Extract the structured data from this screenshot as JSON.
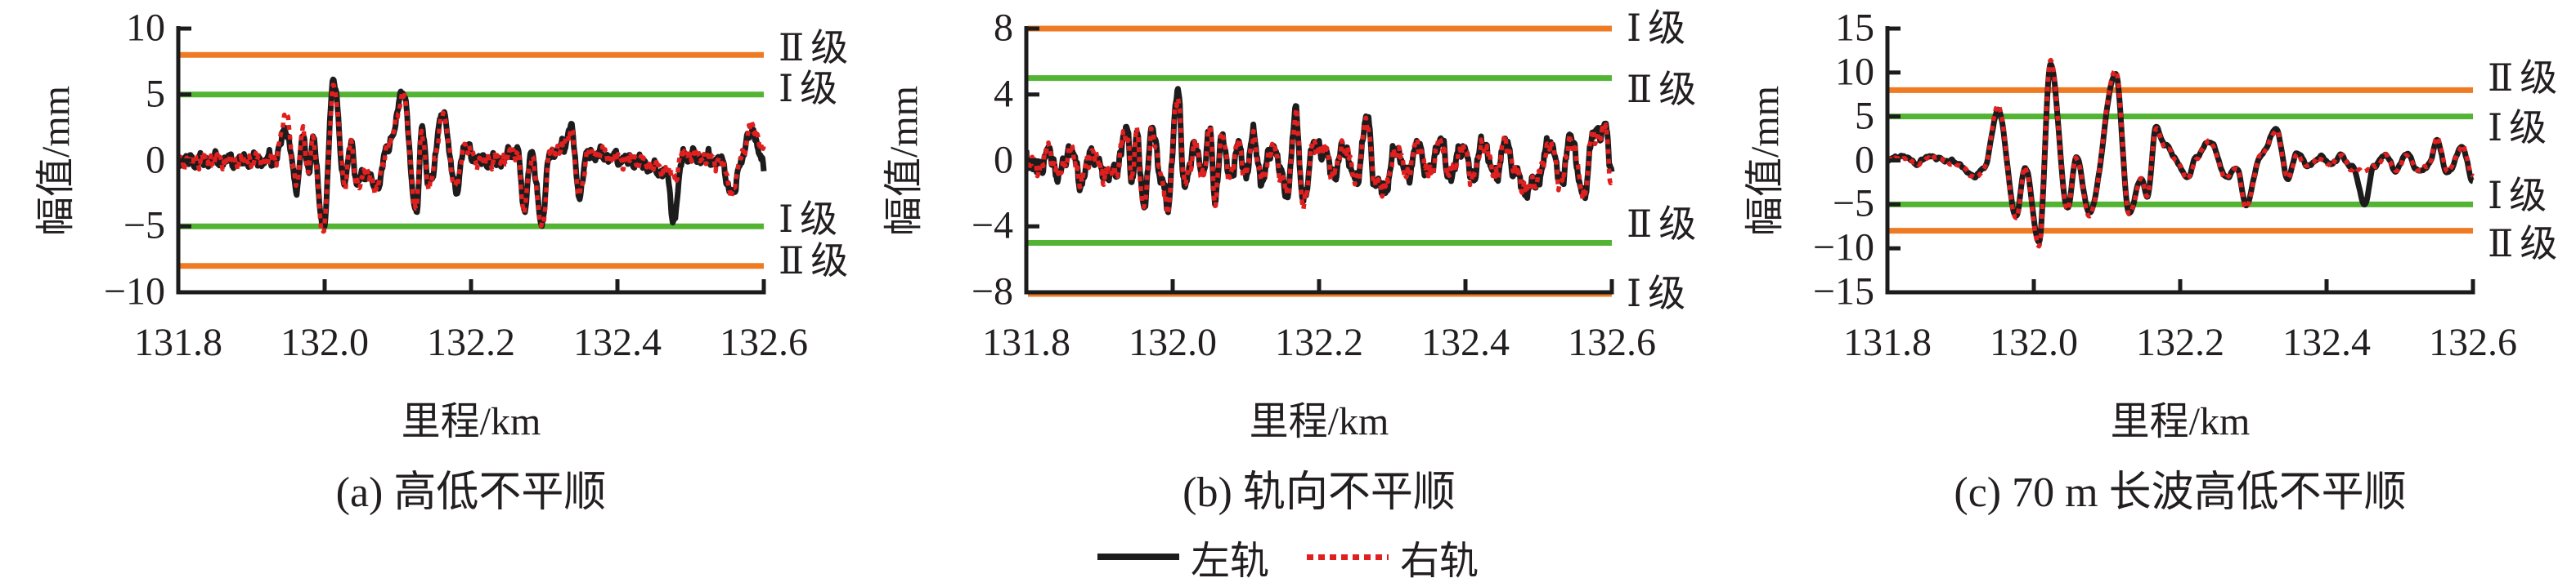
{
  "figure": {
    "background": "#ffffff",
    "text_color": "#231f20",
    "colors": {
      "orange_limit": "#ee7a23",
      "green_limit": "#53b434",
      "left_rail": "#1c1c1c",
      "right_rail": "#e01f1f"
    }
  },
  "legend": {
    "items": [
      {
        "label": "左轨",
        "style": "solid",
        "color": "#1c1c1c"
      },
      {
        "label": "右轨",
        "style": "dotted",
        "color": "#e01f1f"
      }
    ]
  },
  "chart_data": [
    {
      "id": "a",
      "type": "line",
      "caption": "(a) 高低不平顺",
      "xlabel": "里程/km",
      "ylabel": "幅值/mm",
      "xlim": [
        131.8,
        132.6
      ],
      "xticks": [
        "131.8",
        "132.0",
        "132.2",
        "132.4",
        "132.6"
      ],
      "ylim": [
        -10,
        10
      ],
      "yticks": [
        10,
        5,
        0,
        -5,
        -10
      ],
      "grid": false,
      "noise_freq_scale": 1.0,
      "limit_lines": [
        {
          "y": 8,
          "label": "Ⅱ级",
          "color": "orange"
        },
        {
          "y": 5,
          "label": "Ⅰ级",
          "color": "green"
        },
        {
          "y": -5,
          "label": "Ⅰ级",
          "color": "green"
        },
        {
          "y": -8,
          "label": "Ⅱ级",
          "color": "orange"
        }
      ],
      "series": [
        {
          "name": "左轨",
          "rail": "left",
          "color": "#1c1c1c",
          "style": "solid",
          "noise_amp": 0.6,
          "seed": 11,
          "keypoints": [
            131.8,
            0,
            131.93,
            0,
            131.948,
            2.3,
            131.962,
            -2.3,
            131.97,
            2.2,
            131.978,
            -1.2,
            131.984,
            1.8,
            131.998,
            -5.3,
            132.012,
            6.0,
            132.028,
            -1.8,
            132.036,
            1.4,
            132.044,
            -1.6,
            132.06,
            -1.0,
            132.07,
            -2.2,
            132.085,
            0.8,
            132.108,
            5.1,
            132.125,
            -4.2,
            132.133,
            2.6,
            132.142,
            -1.9,
            132.162,
            3.5,
            132.18,
            -2.4,
            132.19,
            1.0,
            132.21,
            0,
            132.24,
            0,
            132.264,
            0.8,
            132.272,
            -3.9,
            132.282,
            0.5,
            132.297,
            -4.6,
            132.308,
            0.6,
            132.325,
            0.9,
            132.337,
            2.6,
            132.347,
            -2.5,
            132.36,
            0.5,
            132.42,
            0,
            132.466,
            -0.9,
            132.477,
            -4.4,
            132.49,
            0.4,
            132.54,
            0,
            132.558,
            -2.6,
            132.57,
            0.3,
            132.584,
            2.3,
            132.6,
            -0.5
          ]
        },
        {
          "name": "右轨",
          "rail": "right",
          "color": "#e01f1f",
          "style": "dotted",
          "noise_amp": 0.6,
          "seed": 12,
          "keypoints": [
            131.8,
            0,
            131.93,
            0,
            131.948,
            3.3,
            131.962,
            -2.0,
            131.97,
            2.4,
            131.978,
            -1.0,
            131.984,
            1.6,
            131.998,
            -5.6,
            132.012,
            5.6,
            132.028,
            -1.6,
            132.036,
            1.2,
            132.044,
            -1.8,
            132.06,
            -0.8,
            132.07,
            -2.4,
            132.085,
            0.9,
            132.108,
            4.8,
            132.125,
            -3.8,
            132.133,
            2.4,
            132.142,
            -2.1,
            132.162,
            3.3,
            132.18,
            -2.2,
            132.19,
            1.1,
            132.21,
            0,
            132.24,
            0,
            132.264,
            0.7,
            132.272,
            -4.1,
            132.282,
            0.4,
            132.297,
            -5.0,
            132.308,
            0.5,
            132.325,
            1.0,
            132.337,
            2.4,
            132.347,
            -2.7,
            132.36,
            0.6,
            132.42,
            0,
            132.466,
            -0.7,
            132.477,
            -1.2,
            132.49,
            0.5,
            132.54,
            0,
            132.558,
            -2.4,
            132.57,
            0.5,
            132.584,
            2.6,
            132.6,
            0.8
          ]
        }
      ]
    },
    {
      "id": "b",
      "type": "line",
      "caption": "(b) 轨向不平顺",
      "xlabel": "里程/km",
      "ylabel": "幅值/mm",
      "xlim": [
        131.8,
        132.6
      ],
      "xticks": [
        "131.8",
        "132.0",
        "132.2",
        "132.4",
        "132.6"
      ],
      "ylim": [
        -8,
        8
      ],
      "yticks": [
        8,
        4,
        0,
        -4,
        -8
      ],
      "grid": false,
      "noise_freq_scale": 1.05,
      "limit_lines": [
        {
          "y": 8,
          "label": "Ⅰ级",
          "color": "orange"
        },
        {
          "y": 5,
          "label": "Ⅱ级",
          "color": "green"
        },
        {
          "y": -5,
          "label": "Ⅱ级",
          "color": "green"
        },
        {
          "y": -8,
          "label": "Ⅰ级",
          "color": "orange"
        }
      ],
      "series": [
        {
          "name": "左轨",
          "rail": "left",
          "color": "#1c1c1c",
          "style": "solid",
          "noise_amp": 0.62,
          "seed": 21,
          "keypoints": [
            131.8,
            0.2,
            131.815,
            -0.6,
            131.83,
            0.5,
            131.845,
            -0.9,
            131.86,
            0.7,
            131.875,
            -1.3,
            131.89,
            0.5,
            131.905,
            -0.7,
            131.92,
            -0.9,
            131.937,
            1.8,
            131.945,
            -1.0,
            131.951,
            1.5,
            131.96,
            -2.6,
            131.973,
            1.9,
            131.985,
            -1.3,
            131.993,
            -2.7,
            132.007,
            4.1,
            132.017,
            -1.6,
            132.031,
            1.2,
            132.04,
            -1.0,
            132.051,
            2.0,
            132.058,
            -2.8,
            132.066,
            1.6,
            132.078,
            -0.9,
            132.09,
            0.8,
            132.1,
            -0.7,
            132.111,
            1.5,
            132.122,
            -1.4,
            132.135,
            0.9,
            132.15,
            -0.8,
            132.157,
            -2.3,
            132.168,
            3.2,
            132.178,
            -2.6,
            132.192,
            0.9,
            132.205,
            0.7,
            132.22,
            -0.8,
            132.235,
            0.8,
            132.25,
            -1.3,
            132.266,
            2.5,
            132.277,
            -1.5,
            132.292,
            -1.6,
            132.305,
            0.8,
            132.32,
            -0.9,
            132.335,
            0.9,
            132.35,
            -0.8,
            132.365,
            1.2,
            132.38,
            -1.0,
            132.395,
            0.9,
            132.41,
            -0.9,
            132.425,
            1.1,
            132.44,
            -1.0,
            132.455,
            1.0,
            132.47,
            -0.9,
            132.484,
            -1.9,
            132.5,
            -1.1,
            132.515,
            1.2,
            132.53,
            -1.2,
            132.545,
            1.4,
            132.561,
            -2.3,
            132.574,
            1.5,
            132.591,
            2.0,
            132.6,
            -0.8
          ]
        },
        {
          "name": "右轨",
          "rail": "right",
          "color": "#e01f1f",
          "style": "dotted",
          "noise_amp": 0.62,
          "seed": 22,
          "keypoints": [
            131.8,
            0.1,
            131.815,
            -0.5,
            131.83,
            0.6,
            131.845,
            -0.8,
            131.86,
            0.6,
            131.875,
            -1.2,
            131.89,
            0.6,
            131.905,
            -0.8,
            131.92,
            -0.8,
            131.937,
            1.7,
            131.945,
            -0.9,
            131.951,
            1.6,
            131.96,
            -2.8,
            131.973,
            1.8,
            131.985,
            -1.2,
            131.993,
            -2.8,
            132.007,
            3.9,
            132.017,
            -1.5,
            132.031,
            1.1,
            132.04,
            -1.1,
            132.051,
            1.9,
            132.058,
            -2.6,
            132.066,
            1.5,
            132.078,
            -0.8,
            132.09,
            0.9,
            132.1,
            -0.8,
            132.111,
            1.4,
            132.122,
            -1.3,
            132.135,
            0.8,
            132.15,
            -0.9,
            132.157,
            -2.2,
            132.168,
            3.0,
            132.178,
            -2.7,
            132.192,
            0.8,
            132.205,
            0.8,
            132.22,
            -0.7,
            132.235,
            0.9,
            132.25,
            -1.2,
            132.266,
            2.3,
            132.277,
            -1.6,
            132.292,
            -1.5,
            132.305,
            0.7,
            132.32,
            -0.8,
            132.335,
            1.0,
            132.35,
            -0.9,
            132.365,
            1.1,
            132.38,
            -0.9,
            132.395,
            0.8,
            132.41,
            -1.0,
            132.425,
            1.0,
            132.44,
            -0.9,
            132.455,
            1.1,
            132.47,
            -0.8,
            132.484,
            -1.8,
            132.5,
            -1.0,
            132.515,
            1.1,
            132.53,
            -1.3,
            132.545,
            1.3,
            132.561,
            -2.1,
            132.574,
            1.4,
            132.591,
            1.8,
            132.6,
            -1.2
          ]
        }
      ]
    },
    {
      "id": "c",
      "type": "line",
      "caption": "(c) 70 m 长波高低不平顺",
      "xlabel": "里程/km",
      "ylabel": "幅值/mm",
      "xlim": [
        131.8,
        132.6
      ],
      "xticks": [
        "131.8",
        "132.0",
        "132.2",
        "132.4",
        "132.6"
      ],
      "ylim": [
        -15,
        15
      ],
      "yticks": [
        15,
        10,
        5,
        0,
        -5,
        -10,
        -15
      ],
      "grid": false,
      "noise_freq_scale": 0.5,
      "limit_lines": [
        {
          "y": 8,
          "label": "Ⅱ级",
          "color": "orange"
        },
        {
          "y": 5,
          "label": "Ⅰ级",
          "color": "green"
        },
        {
          "y": -5,
          "label": "Ⅰ级",
          "color": "green"
        },
        {
          "y": -8,
          "label": "Ⅱ级",
          "color": "orange"
        }
      ],
      "series": [
        {
          "name": "左轨",
          "rail": "left",
          "color": "#1c1c1c",
          "style": "solid",
          "noise_amp": 0.3,
          "seed": 31,
          "keypoints": [
            131.8,
            0.2,
            131.82,
            0.4,
            131.84,
            -0.2,
            131.86,
            0.4,
            131.88,
            0.1,
            131.9,
            -0.6,
            131.918,
            -1.8,
            131.932,
            -1.0,
            131.951,
            5.8,
            131.976,
            -6.4,
            131.988,
            -0.6,
            132.007,
            -9.3,
            132.023,
            11.0,
            132.046,
            -5.5,
            132.058,
            0.4,
            132.076,
            -6.0,
            132.112,
            9.8,
            132.13,
            -5.9,
            132.147,
            -2.2,
            132.155,
            -4.1,
            132.167,
            3.8,
            132.18,
            1.7,
            132.195,
            0.0,
            132.21,
            -2.0,
            132.222,
            0.3,
            132.24,
            2.3,
            132.263,
            -1.9,
            132.278,
            -0.8,
            132.29,
            -5.2,
            132.31,
            0.6,
            132.331,
            3.5,
            132.347,
            -1.9,
            132.36,
            0.8,
            132.375,
            -0.7,
            132.39,
            0.5,
            132.405,
            -0.5,
            132.42,
            0.6,
            132.435,
            -0.8,
            132.452,
            -4.9,
            132.465,
            -0.6,
            132.48,
            0.5,
            132.495,
            -1.0,
            132.51,
            0.7,
            132.525,
            -1.2,
            132.54,
            -0.5,
            132.551,
            2.2,
            132.565,
            -1.4,
            132.585,
            1.4,
            132.6,
            -2.2
          ]
        },
        {
          "name": "右轨",
          "rail": "right",
          "color": "#e01f1f",
          "style": "dotted",
          "noise_amp": 0.3,
          "seed": 32,
          "keypoints": [
            131.8,
            0.1,
            131.82,
            0.3,
            131.84,
            -0.3,
            131.86,
            0.3,
            131.88,
            0.0,
            131.9,
            -0.7,
            131.918,
            -1.9,
            131.932,
            -1.1,
            131.951,
            6.3,
            131.976,
            -6.7,
            131.988,
            -0.7,
            132.007,
            -9.7,
            132.023,
            11.4,
            132.046,
            -5.7,
            132.058,
            0.3,
            132.076,
            -6.3,
            132.112,
            10.3,
            132.13,
            -6.1,
            132.147,
            -2.1,
            132.155,
            -4.0,
            132.167,
            3.6,
            132.18,
            1.6,
            132.195,
            -0.1,
            132.21,
            -2.1,
            132.222,
            0.2,
            132.24,
            2.2,
            132.263,
            -2.0,
            132.278,
            -0.9,
            132.29,
            -5.4,
            132.31,
            0.5,
            132.331,
            3.4,
            132.347,
            -2.0,
            132.36,
            0.7,
            132.375,
            -0.8,
            132.39,
            0.4,
            132.405,
            -0.6,
            132.42,
            0.5,
            132.435,
            -0.9,
            132.452,
            -1.3,
            132.465,
            -0.7,
            132.48,
            0.4,
            132.495,
            -1.1,
            132.51,
            0.6,
            132.525,
            -1.3,
            132.54,
            -0.4,
            132.551,
            2.6,
            132.565,
            -1.3,
            132.585,
            1.6,
            132.6,
            -1.8
          ]
        }
      ]
    }
  ]
}
